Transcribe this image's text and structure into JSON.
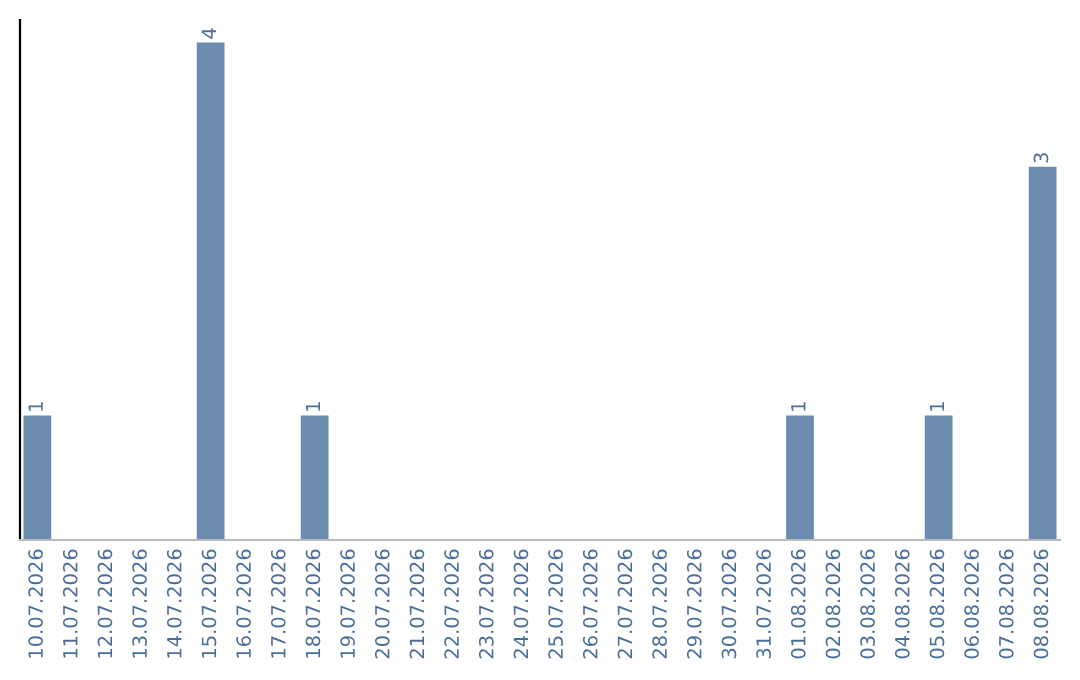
{
  "chart_data": {
    "type": "bar",
    "categories": [
      "10.07.2026",
      "11.07.2026",
      "12.07.2026",
      "13.07.2026",
      "14.07.2026",
      "15.07.2026",
      "16.07.2026",
      "17.07.2026",
      "18.07.2026",
      "19.07.2026",
      "20.07.2026",
      "21.07.2026",
      "22.07.2026",
      "23.07.2026",
      "24.07.2026",
      "25.07.2026",
      "26.07.2026",
      "27.07.2026",
      "28.07.2026",
      "29.07.2026",
      "30.07.2026",
      "31.07.2026",
      "01.08.2026",
      "02.08.2026",
      "03.08.2026",
      "04.08.2026",
      "05.08.2026",
      "06.08.2026",
      "07.08.2026",
      "08.08.2026"
    ],
    "values": [
      1,
      0,
      0,
      0,
      0,
      4,
      0,
      0,
      1,
      0,
      0,
      0,
      0,
      0,
      0,
      0,
      0,
      0,
      0,
      0,
      0,
      0,
      1,
      0,
      0,
      0,
      1,
      0,
      0,
      3
    ],
    "color": "#6b8caf",
    "value_labels": [
      "1",
      null,
      null,
      null,
      null,
      "4",
      null,
      null,
      "1",
      null,
      null,
      null,
      null,
      null,
      null,
      null,
      null,
      null,
      null,
      null,
      null,
      null,
      "1",
      null,
      null,
      null,
      "1",
      null,
      null,
      "3"
    ],
    "tick_labels": "x",
    "grid": false,
    "legend": false
  }
}
